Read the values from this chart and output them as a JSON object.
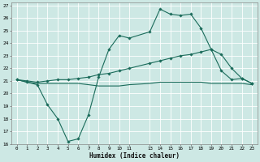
{
  "xlabel": "Humidex (Indice chaleur)",
  "bg_color": "#cde8e4",
  "grid_color": "#ffffff",
  "line_color": "#1a6b5a",
  "xlim": [
    -0.5,
    23.5
  ],
  "ylim": [
    16,
    27.2
  ],
  "xtick_positions": [
    0,
    1,
    2,
    3,
    4,
    5,
    6,
    7,
    8,
    9,
    10,
    11,
    13,
    14,
    15,
    16,
    17,
    18,
    19,
    20,
    21,
    22,
    23
  ],
  "xtick_labels": [
    "0",
    "1",
    "2",
    "3",
    "4",
    "5",
    "6",
    "7",
    "8",
    "9",
    "10",
    "11",
    "13",
    "14",
    "15",
    "16",
    "17",
    "18",
    "19",
    "20",
    "21",
    "22",
    "23"
  ],
  "ytick_positions": [
    16,
    17,
    18,
    19,
    20,
    21,
    22,
    23,
    24,
    25,
    26,
    27
  ],
  "ytick_labels": [
    "16",
    "17",
    "18",
    "19",
    "20",
    "21",
    "22",
    "23",
    "24",
    "25",
    "26",
    "27"
  ],
  "line1_x": [
    0,
    1,
    2,
    3,
    4,
    5,
    6,
    7,
    8,
    9,
    10,
    11,
    13,
    14,
    15,
    16,
    17,
    18,
    19,
    20,
    21,
    22,
    23
  ],
  "line1_y": [
    21.1,
    20.9,
    20.7,
    19.1,
    18.0,
    16.2,
    16.4,
    18.3,
    21.3,
    23.5,
    24.6,
    24.4,
    24.9,
    26.7,
    26.3,
    26.2,
    26.3,
    25.2,
    23.5,
    21.8,
    21.1,
    21.2,
    20.8
  ],
  "line2_x": [
    0,
    1,
    2,
    3,
    4,
    5,
    6,
    7,
    8,
    9,
    10,
    11,
    13,
    14,
    15,
    16,
    17,
    18,
    19,
    20,
    21,
    22,
    23
  ],
  "line2_y": [
    21.1,
    21.0,
    20.9,
    21.0,
    21.1,
    21.1,
    21.2,
    21.3,
    21.5,
    21.6,
    21.8,
    22.0,
    22.4,
    22.6,
    22.8,
    23.0,
    23.1,
    23.3,
    23.5,
    23.1,
    22.0,
    21.2,
    20.8
  ],
  "line3_x": [
    0,
    1,
    2,
    3,
    4,
    5,
    6,
    7,
    8,
    9,
    10,
    11,
    13,
    14,
    15,
    16,
    17,
    18,
    19,
    20,
    21,
    22,
    23
  ],
  "line3_y": [
    21.1,
    20.9,
    20.8,
    20.8,
    20.8,
    20.8,
    20.8,
    20.7,
    20.6,
    20.6,
    20.6,
    20.7,
    20.8,
    20.9,
    20.9,
    20.9,
    20.9,
    20.9,
    20.8,
    20.8,
    20.8,
    20.8,
    20.7
  ],
  "tick_fontsize": 4.2,
  "xlabel_fontsize": 5.5,
  "marker_size": 1.8,
  "linewidth": 0.8
}
